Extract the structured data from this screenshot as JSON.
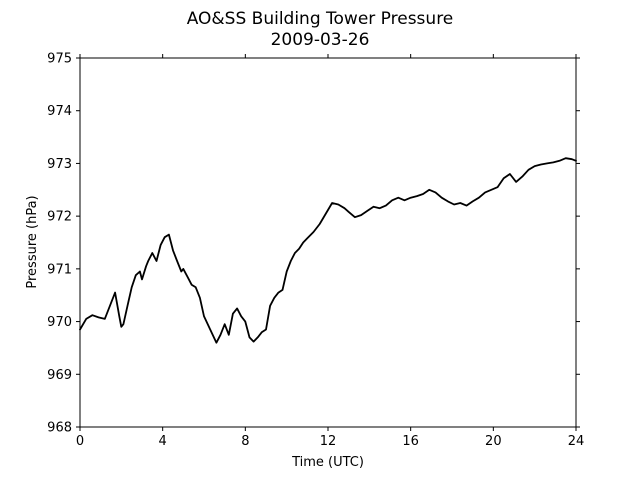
{
  "chart_data": {
    "type": "line",
    "title": "AO&SS Building Tower Pressure",
    "subtitle": "2009-03-26",
    "xlabel": "Time (UTC)",
    "ylabel": "Pressure (hPa)",
    "xlim": [
      0,
      24
    ],
    "ylim": [
      968,
      975
    ],
    "xticks": [
      0,
      4,
      8,
      12,
      16,
      20,
      24
    ],
    "yticks": [
      968,
      969,
      970,
      971,
      972,
      973,
      974,
      975
    ],
    "grid": false,
    "line_color": "#000000",
    "series": [
      {
        "x": [
          0,
          0.3,
          0.6,
          0.9,
          1.2,
          1.5,
          1.7,
          1.9,
          2.0,
          2.1,
          2.3,
          2.5,
          2.7,
          2.9,
          3.0,
          3.2,
          3.3,
          3.5,
          3.7,
          3.9,
          4.1,
          4.3,
          4.5,
          4.7,
          4.9,
          5.0,
          5.2,
          5.4,
          5.6,
          5.8,
          6.0,
          6.3,
          6.6,
          6.8,
          7.0,
          7.2,
          7.4,
          7.6,
          7.8,
          8.0,
          8.2,
          8.4,
          8.6,
          8.8,
          9.0,
          9.2,
          9.4,
          9.6,
          9.8,
          10.0,
          10.2,
          10.4,
          10.6,
          10.8,
          11.0,
          11.3,
          11.6,
          11.9,
          12.2,
          12.5,
          12.8,
          13.0,
          13.3,
          13.6,
          13.9,
          14.2,
          14.5,
          14.8,
          15.1,
          15.4,
          15.7,
          16.0,
          16.3,
          16.6,
          16.9,
          17.2,
          17.5,
          17.8,
          18.1,
          18.4,
          18.7,
          19.0,
          19.3,
          19.6,
          19.9,
          20.2,
          20.5,
          20.8,
          21.1,
          21.4,
          21.7,
          22.0,
          22.3,
          22.6,
          22.9,
          23.2,
          23.5,
          23.8,
          24.0
        ],
        "values": [
          969.85,
          970.05,
          970.12,
          970.08,
          970.05,
          970.35,
          970.55,
          970.1,
          969.9,
          969.95,
          970.3,
          970.65,
          970.88,
          970.95,
          970.8,
          971.05,
          971.15,
          971.3,
          971.15,
          971.45,
          971.6,
          971.65,
          971.35,
          971.15,
          970.95,
          971.0,
          970.85,
          970.7,
          970.65,
          970.45,
          970.1,
          969.85,
          969.6,
          969.75,
          969.95,
          969.75,
          970.15,
          970.25,
          970.1,
          970.0,
          969.7,
          969.62,
          969.7,
          969.8,
          969.85,
          970.3,
          970.45,
          970.55,
          970.6,
          970.95,
          971.15,
          971.3,
          971.38,
          971.5,
          971.58,
          971.7,
          971.85,
          972.05,
          972.25,
          972.22,
          972.15,
          972.08,
          971.98,
          972.02,
          972.1,
          972.18,
          972.15,
          972.2,
          972.3,
          972.35,
          972.3,
          972.35,
          972.38,
          972.42,
          972.5,
          972.45,
          972.35,
          972.28,
          972.22,
          972.25,
          972.2,
          972.28,
          972.35,
          972.45,
          972.5,
          972.55,
          972.72,
          972.8,
          972.65,
          972.75,
          972.88,
          972.95,
          972.98,
          973.0,
          973.02,
          973.05,
          973.1,
          973.08,
          973.05
        ]
      }
    ]
  }
}
